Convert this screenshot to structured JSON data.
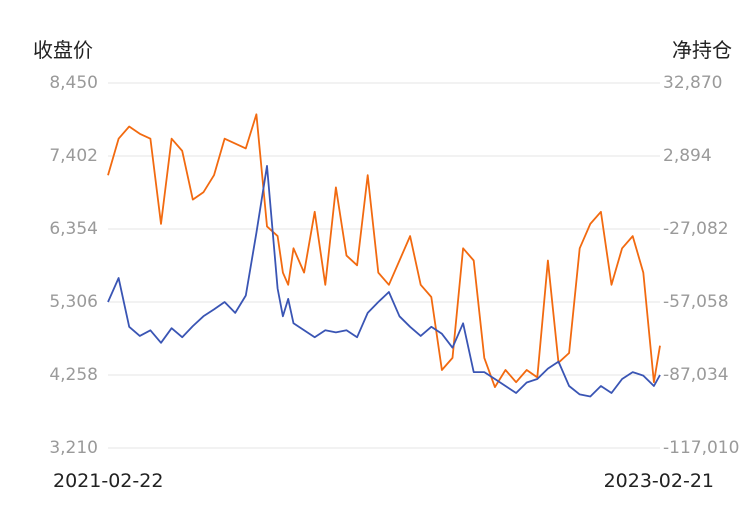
{
  "chart_data": {
    "type": "line",
    "left_axis_title": "收盘价",
    "right_axis_title": "净持仓",
    "left_ticks": [
      "8,450",
      "7,402",
      "6,354",
      "5,306",
      "4,258",
      "3,210"
    ],
    "right_ticks": [
      "32,870",
      "2,894",
      "-27,082",
      "-57,058",
      "-87,034",
      "-117,010"
    ],
    "left_ylim": [
      3210,
      8450
    ],
    "right_ylim": [
      -117010,
      32870
    ],
    "x_labels": [
      "2021-02-22",
      "2023-02-21"
    ],
    "x_range": [
      "2021-02-22",
      "2023-02-21"
    ],
    "grid": true,
    "series": [
      {
        "axis": "left",
        "color": "#3a55b4",
        "x": [
          "2021-02-22",
          "2021-03-08",
          "2021-03-22",
          "2021-04-05",
          "2021-04-19",
          "2021-05-03",
          "2021-05-17",
          "2021-05-31",
          "2021-06-14",
          "2021-06-28",
          "2021-07-12",
          "2021-07-26",
          "2021-08-09",
          "2021-08-23",
          "2021-09-06",
          "2021-09-20",
          "2021-10-04",
          "2021-10-11",
          "2021-10-18",
          "2021-10-25",
          "2021-11-08",
          "2021-11-22",
          "2021-12-06",
          "2021-12-20",
          "2022-01-03",
          "2022-01-17",
          "2022-01-31",
          "2022-02-14",
          "2022-02-28",
          "2022-03-14",
          "2022-03-28",
          "2022-04-11",
          "2022-04-25",
          "2022-05-09",
          "2022-05-23",
          "2022-06-06",
          "2022-06-20",
          "2022-07-04",
          "2022-07-18",
          "2022-08-01",
          "2022-08-15",
          "2022-08-29",
          "2022-09-12",
          "2022-09-26",
          "2022-10-10",
          "2022-10-24",
          "2022-11-07",
          "2022-11-21",
          "2022-12-05",
          "2022-12-19",
          "2023-01-02",
          "2023-01-16",
          "2023-01-30",
          "2023-02-13",
          "2023-02-21"
        ],
        "values": [
          5306,
          5650,
          4950,
          4820,
          4900,
          4720,
          4930,
          4800,
          4960,
          5100,
          5200,
          5306,
          5150,
          5400,
          6300,
          7260,
          5500,
          5100,
          5350,
          5000,
          4900,
          4800,
          4900,
          4870,
          4900,
          4800,
          5150,
          5306,
          5450,
          5100,
          4950,
          4820,
          4950,
          4850,
          4650,
          5000,
          4300,
          4300,
          4200,
          4100,
          4000,
          4150,
          4200,
          4350,
          4450,
          4100,
          3980,
          3950,
          4100,
          4000,
          4200,
          4300,
          4250,
          4100,
          4258
        ]
      },
      {
        "axis": "right",
        "color": "#f26a10",
        "x": [
          "2021-02-22",
          "2021-03-08",
          "2021-03-22",
          "2021-04-05",
          "2021-04-19",
          "2021-05-03",
          "2021-05-17",
          "2021-05-31",
          "2021-06-14",
          "2021-06-28",
          "2021-07-12",
          "2021-07-26",
          "2021-08-09",
          "2021-08-23",
          "2021-09-06",
          "2021-09-20",
          "2021-10-04",
          "2021-10-11",
          "2021-10-18",
          "2021-10-25",
          "2021-11-08",
          "2021-11-22",
          "2021-12-06",
          "2021-12-20",
          "2022-01-03",
          "2022-01-17",
          "2022-01-31",
          "2022-02-14",
          "2022-02-28",
          "2022-03-14",
          "2022-03-28",
          "2022-04-11",
          "2022-04-25",
          "2022-05-09",
          "2022-05-23",
          "2022-06-06",
          "2022-06-20",
          "2022-07-04",
          "2022-07-18",
          "2022-08-01",
          "2022-08-15",
          "2022-08-29",
          "2022-09-12",
          "2022-09-26",
          "2022-10-10",
          "2022-10-24",
          "2022-11-07",
          "2022-11-21",
          "2022-12-05",
          "2022-12-19",
          "2023-01-02",
          "2023-01-16",
          "2023-01-30",
          "2023-02-13",
          "2023-02-21"
        ],
        "values": [
          -5000,
          10000,
          15000,
          12000,
          10000,
          -25000,
          10000,
          5000,
          -15000,
          -12000,
          -5000,
          10000,
          8000,
          6000,
          20000,
          -26000,
          -30000,
          -45000,
          -50000,
          -35000,
          -45000,
          -20000,
          -50000,
          -10000,
          -38000,
          -42000,
          -5000,
          -45000,
          -50000,
          -40000,
          -30000,
          -50000,
          -55000,
          -85000,
          -80000,
          -35000,
          -40000,
          -80000,
          -92000,
          -85000,
          -90000,
          -85000,
          -88000,
          -40000,
          -82000,
          -78000,
          -35000,
          -25000,
          -20000,
          -50000,
          -35000,
          -30000,
          -45000,
          -90000,
          -75000
        ]
      }
    ]
  }
}
